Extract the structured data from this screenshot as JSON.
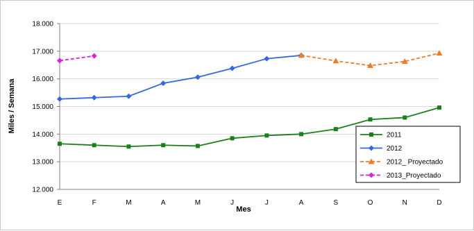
{
  "chart_data": {
    "type": "line",
    "title": "",
    "xlabel": "Mes",
    "ylabel": "Miles / Semana",
    "categories": [
      "E",
      "F",
      "M",
      "A",
      "M",
      "J",
      "J",
      "A",
      "S",
      "O",
      "N",
      "D"
    ],
    "ylim": [
      12000,
      18000
    ],
    "yticks": [
      12000,
      13000,
      14000,
      15000,
      16000,
      17000,
      18000
    ],
    "ytick_labels": [
      "12.000",
      "13.000",
      "14.000",
      "15.000",
      "16.000",
      "17.000",
      "18.000"
    ],
    "grid": "horizontal",
    "legend_position": "bottom-right",
    "series": [
      {
        "name": "2011",
        "color": "#1a7f1a",
        "line_style": "solid",
        "marker": "square",
        "values": [
          13650,
          13600,
          13550,
          13600,
          13570,
          13850,
          13950,
          14000,
          14180,
          14530,
          14600,
          14960
        ]
      },
      {
        "name": "2012",
        "color": "#3366e6",
        "line_style": "solid",
        "marker": "diamond",
        "values": [
          15270,
          15320,
          15370,
          15840,
          16060,
          16380,
          16730,
          16850,
          null,
          null,
          null,
          null
        ]
      },
      {
        "name": "2012_ Proyectado",
        "color": "#f07a28",
        "line_style": "dashed",
        "marker": "triangle",
        "values": [
          null,
          null,
          null,
          null,
          null,
          null,
          null,
          16850,
          16650,
          16480,
          16630,
          16930
        ]
      },
      {
        "name": "2013_Proyectado",
        "color": "#e020e0",
        "line_style": "dashed",
        "marker": "diamond",
        "values": [
          16660,
          16830,
          null,
          null,
          null,
          null,
          null,
          null,
          null,
          null,
          null,
          null
        ]
      }
    ]
  }
}
